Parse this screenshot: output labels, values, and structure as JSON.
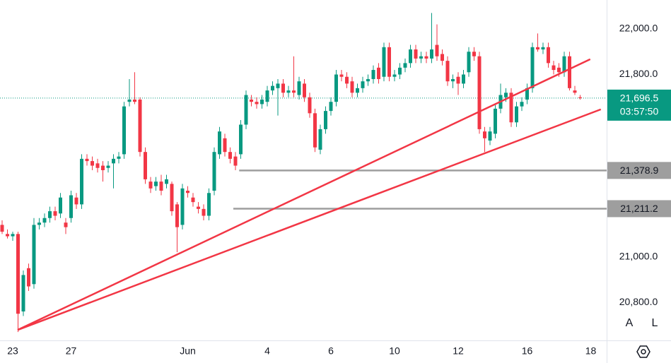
{
  "chart_data": {
    "type": "candlestick",
    "up_color": "#089981",
    "down_color": "#f23645",
    "ylim": [
      20633,
      22127
    ],
    "yticks": [
      {
        "value": 22000,
        "label": "22,000.0"
      },
      {
        "value": 21800,
        "label": "21,800.0"
      },
      {
        "value": 21000,
        "label": "21,000.0"
      },
      {
        "value": 20800,
        "label": "20,800.0"
      }
    ],
    "categories": [
      null,
      null,
      "23",
      null,
      null,
      null,
      null,
      null,
      null,
      null,
      null,
      null,
      null,
      "27",
      null,
      null,
      null,
      null,
      null,
      null,
      null,
      null,
      null,
      null,
      null,
      null,
      null,
      null,
      null,
      null,
      null,
      null,
      null,
      null,
      null,
      "Jun",
      null,
      null,
      null,
      null,
      null,
      null,
      null,
      null,
      null,
      null,
      null,
      null,
      null,
      null,
      "4",
      null,
      null,
      null,
      null,
      null,
      null,
      null,
      null,
      null,
      null,
      null,
      "6",
      null,
      null,
      null,
      null,
      null,
      null,
      null,
      null,
      null,
      null,
      null,
      "10",
      null,
      null,
      null,
      null,
      null,
      null,
      null,
      null,
      null,
      null,
      null,
      "12",
      null,
      null,
      null,
      null,
      null,
      null,
      null,
      null,
      null,
      null,
      null,
      null,
      "16",
      null,
      null,
      null,
      null,
      null,
      null,
      null,
      null,
      null,
      null,
      null,
      "18"
    ],
    "candles": [
      [
        21140,
        21160,
        21100,
        21110
      ],
      [
        21100,
        21120,
        21080,
        21090
      ],
      [
        21090,
        21110,
        21070,
        21100
      ],
      [
        21100,
        21110,
        20670,
        20750
      ],
      [
        20760,
        20940,
        20740,
        20920
      ],
      [
        20950,
        20970,
        20850,
        20870
      ],
      [
        20880,
        21170,
        20860,
        21140
      ],
      [
        21140,
        21170,
        21120,
        21150
      ],
      [
        21150,
        21190,
        21130,
        21170
      ],
      [
        21170,
        21220,
        21150,
        21200
      ],
      [
        21200,
        21220,
        21160,
        21180
      ],
      [
        21190,
        21280,
        21170,
        21260
      ],
      [
        21150,
        21170,
        21100,
        21130
      ],
      [
        21170,
        21290,
        21150,
        21270
      ],
      [
        21260,
        21280,
        21210,
        21230
      ],
      [
        21230,
        21450,
        21210,
        21430
      ],
      [
        21430,
        21450,
        21400,
        21420
      ],
      [
        21420,
        21440,
        21380,
        21400
      ],
      [
        21410,
        21430,
        21370,
        21390
      ],
      [
        21400,
        21420,
        21330,
        21380
      ],
      [
        21390,
        21420,
        21370,
        21400
      ],
      [
        21410,
        21450,
        21300,
        21430
      ],
      [
        21430,
        21460,
        21410,
        21440
      ],
      [
        21450,
        21680,
        21430,
        21660
      ],
      [
        21680,
        21780,
        21660,
        21690
      ],
      [
        21690,
        21810,
        21670,
        21680
      ],
      [
        21690,
        21700,
        21440,
        21460
      ],
      [
        21460,
        21480,
        21320,
        21340
      ],
      [
        21330,
        21350,
        21280,
        21300
      ],
      [
        21310,
        21350,
        21290,
        21330
      ],
      [
        21330,
        21360,
        21270,
        21290
      ],
      [
        21320,
        21360,
        21300,
        21340
      ],
      [
        21320,
        21330,
        21180,
        21200
      ],
      [
        21230,
        21240,
        21020,
        21130
      ],
      [
        21140,
        21320,
        21120,
        21300
      ],
      [
        21290,
        21310,
        21260,
        21280
      ],
      [
        21260,
        21280,
        21220,
        21240
      ],
      [
        21220,
        21240,
        21190,
        21210
      ],
      [
        21210,
        21230,
        21160,
        21180
      ],
      [
        21180,
        21300,
        21160,
        21280
      ],
      [
        21290,
        21480,
        21270,
        21460
      ],
      [
        21450,
        21570,
        21430,
        21550
      ],
      [
        21520,
        21540,
        21440,
        21460
      ],
      [
        21460,
        21480,
        21410,
        21430
      ],
      [
        21440,
        21460,
        21380,
        21400
      ],
      [
        21450,
        21600,
        21430,
        21580
      ],
      [
        21580,
        21730,
        21560,
        21710
      ],
      [
        21690,
        21710,
        21660,
        21680
      ],
      [
        21680,
        21700,
        21650,
        21670
      ],
      [
        21670,
        21710,
        21650,
        21690
      ],
      [
        21680,
        21750,
        21660,
        21730
      ],
      [
        21730,
        21770,
        21710,
        21750
      ],
      [
        21740,
        21780,
        21620,
        21760
      ],
      [
        21760,
        21780,
        21700,
        21720
      ],
      [
        21720,
        21750,
        21700,
        21730
      ],
      [
        21730,
        21880,
        21700,
        21720
      ],
      [
        21710,
        21790,
        21690,
        21770
      ],
      [
        21760,
        21780,
        21680,
        21700
      ],
      [
        21700,
        21720,
        21610,
        21630
      ],
      [
        21630,
        21650,
        21460,
        21480
      ],
      [
        21470,
        21580,
        21450,
        21560
      ],
      [
        21560,
        21660,
        21540,
        21640
      ],
      [
        21640,
        21700,
        21620,
        21680
      ],
      [
        21680,
        21820,
        21660,
        21800
      ],
      [
        21800,
        21820,
        21770,
        21790
      ],
      [
        21790,
        21810,
        21740,
        21760
      ],
      [
        21770,
        21790,
        21700,
        21720
      ],
      [
        21720,
        21760,
        21700,
        21740
      ],
      [
        21740,
        21790,
        21720,
        21770
      ],
      [
        21770,
        21800,
        21750,
        21780
      ],
      [
        21780,
        21840,
        21760,
        21820
      ],
      [
        21830,
        21850,
        21760,
        21780
      ],
      [
        21790,
        21940,
        21770,
        21920
      ],
      [
        21920,
        21940,
        21770,
        21790
      ],
      [
        21790,
        21820,
        21770,
        21800
      ],
      [
        21800,
        21850,
        21780,
        21830
      ],
      [
        21830,
        21870,
        21810,
        21850
      ],
      [
        21850,
        21930,
        21830,
        21910
      ],
      [
        21910,
        21930,
        21850,
        21870
      ],
      [
        21870,
        21900,
        21850,
        21880
      ],
      [
        21880,
        21900,
        21850,
        21870
      ],
      [
        21870,
        22070,
        21850,
        21910
      ],
      [
        21930,
        22020,
        21860,
        21880
      ],
      [
        21890,
        21910,
        21840,
        21860
      ],
      [
        21860,
        21880,
        21750,
        21770
      ],
      [
        21770,
        21800,
        21740,
        21780
      ],
      [
        21790,
        21810,
        21710,
        21760
      ],
      [
        21760,
        21820,
        21740,
        21800
      ],
      [
        21810,
        21920,
        21790,
        21900
      ],
      [
        21900,
        21920,
        21860,
        21880
      ],
      [
        21880,
        21900,
        21540,
        21560
      ],
      [
        21550,
        21570,
        21460,
        21520
      ],
      [
        21510,
        21570,
        21490,
        21550
      ],
      [
        21540,
        21670,
        21520,
        21650
      ],
      [
        21650,
        21760,
        21630,
        21710
      ],
      [
        21700,
        21740,
        21680,
        21720
      ],
      [
        21720,
        21740,
        21570,
        21590
      ],
      [
        21590,
        21680,
        21570,
        21660
      ],
      [
        21660,
        21700,
        21640,
        21680
      ],
      [
        21690,
        21760,
        21670,
        21740
      ],
      [
        21740,
        21940,
        21720,
        21920
      ],
      [
        21920,
        21980,
        21900,
        21910
      ],
      [
        21910,
        21940,
        21890,
        21920
      ],
      [
        21920,
        21940,
        21830,
        21850
      ],
      [
        21840,
        21860,
        21800,
        21820
      ],
      [
        21830,
        21850,
        21790,
        21810
      ],
      [
        21810,
        21900,
        21790,
        21880
      ],
      [
        21880,
        21900,
        21730,
        21740
      ],
      [
        21730,
        21750,
        21710,
        21720
      ],
      [
        21700,
        21710,
        21690,
        21696.5
      ],
      null,
      null
    ],
    "trendlines": [
      {
        "x": [
          2.93,
          110.9
        ],
        "y": [
          20679,
          21867
        ],
        "color": "#f23645"
      },
      {
        "x": [
          2.93,
          112.9
        ],
        "y": [
          20679,
          21647
        ],
        "color": "#f23645"
      }
    ],
    "levels": [
      {
        "value": 21378.9,
        "label": "21,378.9",
        "x_start": 44.7,
        "color": "#9e9e9e"
      },
      {
        "value": 21211.2,
        "label": "21,211.2",
        "x_start": 43.6,
        "color": "#9e9e9e"
      }
    ],
    "last_price": {
      "value": 21696.5,
      "label": "21,696.5",
      "countdown": "03:57:50",
      "color": "#089981"
    },
    "buttons": [
      "A",
      "L"
    ]
  }
}
